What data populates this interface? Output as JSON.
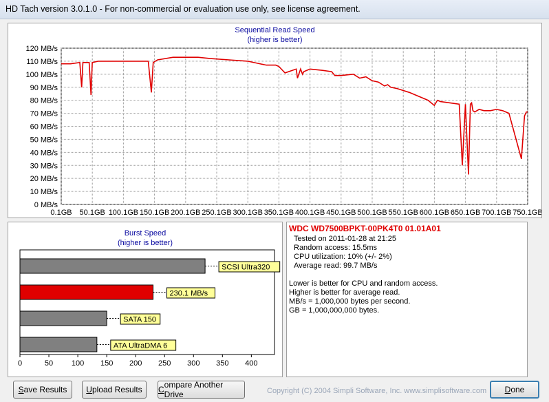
{
  "window": {
    "title": "HD Tach version 3.0.1.0  - For non-commercial or evaluation use only, see license agreement."
  },
  "sequential": {
    "title": "Sequential Read Speed",
    "subtitle": "(higher is better)",
    "series_color": "#e00000"
  },
  "burst": {
    "title": "Burst Speed",
    "subtitle": "(higher is better)"
  },
  "chart_data": [
    {
      "type": "line",
      "title": "Sequential Read Speed",
      "subtitle": "(higher is better)",
      "yticks": [
        "0 MB/s",
        "10 MB/s",
        "20 MB/s",
        "30 MB/s",
        "40 MB/s",
        "50 MB/s",
        "60 MB/s",
        "70 MB/s",
        "80 MB/s",
        "90 MB/s",
        "100 MB/s",
        "110 MB/s",
        "120 MB/s"
      ],
      "xticks": [
        "0.1GB",
        "50.1GB",
        "100.1GB",
        "150.1GB",
        "200.1GB",
        "250.1GB",
        "300.1GB",
        "350.1GB",
        "400.1GB",
        "450.1GB",
        "500.1GB",
        "550.1GB",
        "600.1GB",
        "650.1GB",
        "700.1GB",
        "750.1GB"
      ],
      "ylim": [
        0,
        120
      ],
      "xlim": [
        0.1,
        750.1
      ],
      "grid": true,
      "x": [
        0.1,
        15,
        30,
        33,
        35,
        45,
        48,
        50,
        60,
        100,
        140,
        145,
        148,
        155,
        180,
        220,
        240,
        270,
        300,
        330,
        345,
        350,
        360,
        378,
        380,
        385,
        388,
        390,
        400,
        420,
        435,
        440,
        450,
        470,
        480,
        490,
        500,
        510,
        520,
        525,
        530,
        540,
        560,
        570,
        580,
        590,
        600,
        605,
        610,
        640,
        645,
        650,
        655,
        658,
        660,
        662,
        665,
        672,
        680,
        690,
        700,
        710,
        720,
        740,
        745,
        748,
        750
      ],
      "y": [
        108,
        108,
        109,
        90,
        109,
        109,
        84,
        109,
        110,
        110,
        110,
        86,
        109,
        111,
        113,
        113,
        112,
        111,
        110,
        107,
        107,
        106,
        101,
        104,
        97,
        104,
        100,
        102,
        104,
        103,
        102,
        99,
        99,
        100,
        97,
        98,
        95,
        94,
        91,
        92,
        90,
        89,
        86,
        84,
        82,
        80,
        76,
        80,
        79,
        77,
        30,
        77,
        23,
        77,
        78,
        72,
        71,
        73,
        72,
        72,
        73,
        72,
        70,
        35,
        68,
        71,
        71
      ],
      "series": [
        {
          "name": "WDC WD7500BPKT-00PK4T0 01.01A01",
          "color": "#e00000"
        }
      ]
    },
    {
      "type": "bar",
      "title": "Burst Speed",
      "subtitle": "(higher is better)",
      "categories": [
        "SCSI Ultra320",
        "230.1 MB/s",
        "SATA 150",
        "ATA UltraDMA 6"
      ],
      "values": [
        320,
        230.1,
        150,
        133
      ],
      "colors": [
        "#808080",
        "#e00000",
        "#808080",
        "#808080"
      ],
      "xticks": [
        "0",
        "50",
        "100",
        "150",
        "200",
        "250",
        "300",
        "350",
        "400"
      ],
      "xlim": [
        0,
        440
      ]
    }
  ],
  "info": {
    "drive": "WDC WD7500BPKT-00PK4T0 01.01A01",
    "tested": "Tested on 2011-01-28 at 21:25",
    "random_access": "Random access: 15.5ms",
    "cpu": "CPU utilization: 10% (+/- 2%)",
    "average_read": "Average read: 99.7 MB/s",
    "note1": "Lower is better for CPU and random access.",
    "note2": "Higher is better for average read.",
    "note3": "MB/s = 1,000,000 bytes per second.",
    "note4": "GB = 1,000,000,000 bytes."
  },
  "buttons": {
    "save_first": "S",
    "save_rest": "ave Results",
    "upload_first": "U",
    "upload_rest": "pload Results",
    "compare_first": "C",
    "compare_rest": "ompare Another Drive",
    "done_first": "D",
    "done_rest": "one"
  },
  "footer": {
    "copyright": "Copyright (C) 2004 Simpli Software, Inc. www.simplisoftware.com"
  }
}
